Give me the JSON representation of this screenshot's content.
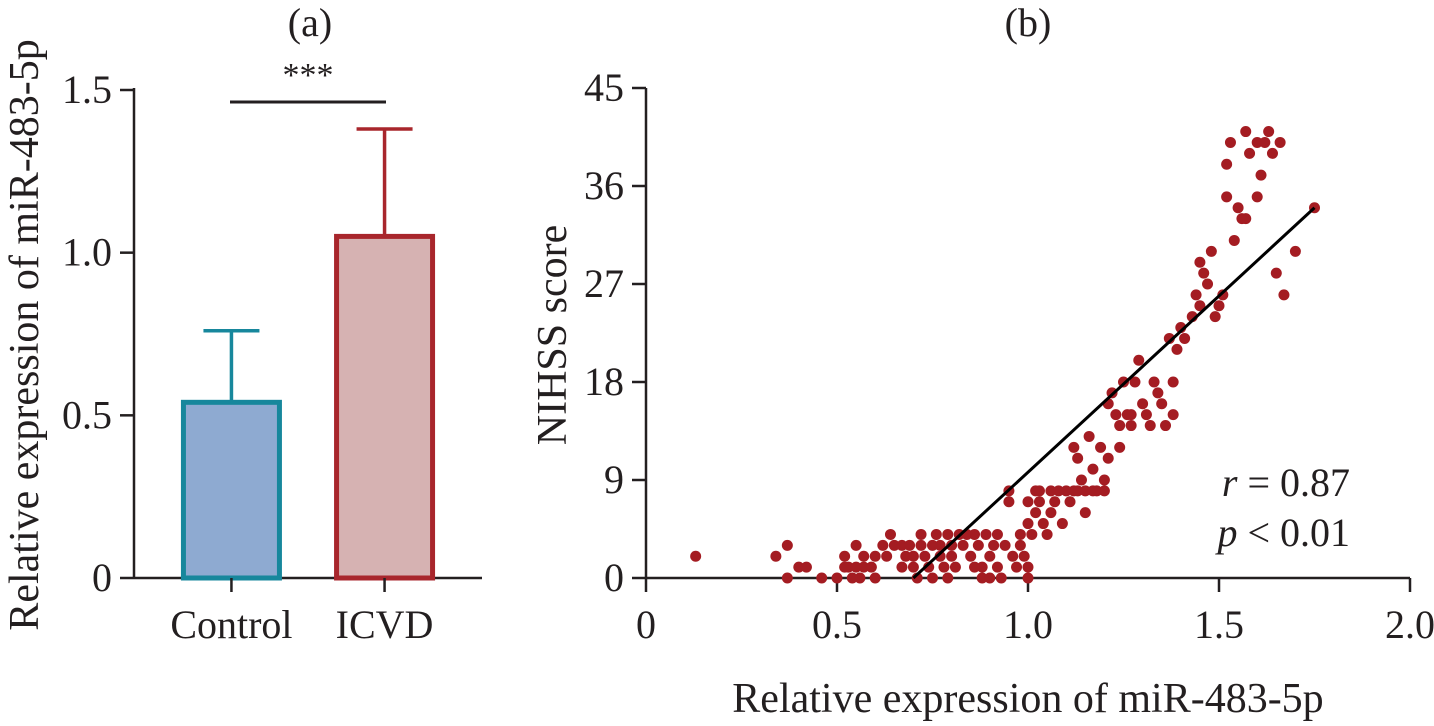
{
  "chart_data": [
    {
      "panel": "(a)",
      "type": "bar",
      "categories": [
        "Control",
        "ICVD"
      ],
      "values": [
        0.54,
        1.05
      ],
      "errors": [
        0.22,
        0.33
      ],
      "ylabel": "Relative expression of miR-483-5p",
      "xlabel": "",
      "ylim": [
        0,
        1.5
      ],
      "yticks": [
        0,
        0.5,
        1.0,
        1.5
      ],
      "ytick_labels": [
        "0",
        "0.5",
        "1.0",
        "1.5"
      ],
      "significance": "***",
      "colors": {
        "control_fill": "#8eaad1",
        "control_edge": "#17879c",
        "icvd_fill": "#d6b2b2",
        "icvd_edge": "#a8262c"
      }
    },
    {
      "panel": "(b)",
      "type": "scatter",
      "xlabel": "Relative expression of miR-483-5p",
      "ylabel": "NIHSS score",
      "xlim": [
        0,
        2.0
      ],
      "ylim": [
        0,
        45
      ],
      "xticks": [
        0,
        0.5,
        1.0,
        1.5,
        2.0
      ],
      "xtick_labels": [
        "0",
        "0.5",
        "1.0",
        "1.5",
        "2.0"
      ],
      "yticks": [
        0,
        9,
        18,
        27,
        36,
        45
      ],
      "ytick_labels": [
        "0",
        "9",
        "18",
        "27",
        "36",
        "45"
      ],
      "point_color": "#a41c22",
      "fit_line": {
        "x": [
          0.7,
          1.75
        ],
        "y": [
          0,
          34
        ]
      },
      "stats": {
        "r_symbol": "r",
        "r_text": " = 0.87",
        "p_symbol": "p",
        "p_text": " < 0.01"
      },
      "points": [
        [
          0.13,
          2
        ],
        [
          0.34,
          2
        ],
        [
          0.37,
          3
        ],
        [
          0.37,
          0
        ],
        [
          0.4,
          1
        ],
        [
          0.42,
          1
        ],
        [
          0.46,
          0
        ],
        [
          0.5,
          0
        ],
        [
          0.52,
          1
        ],
        [
          0.52,
          2
        ],
        [
          0.53,
          1
        ],
        [
          0.54,
          0
        ],
        [
          0.55,
          3
        ],
        [
          0.55,
          1
        ],
        [
          0.56,
          0
        ],
        [
          0.57,
          2
        ],
        [
          0.57,
          1
        ],
        [
          0.59,
          1
        ],
        [
          0.6,
          2
        ],
        [
          0.6,
          0
        ],
        [
          0.62,
          3
        ],
        [
          0.63,
          2
        ],
        [
          0.64,
          4
        ],
        [
          0.65,
          3
        ],
        [
          0.67,
          1
        ],
        [
          0.67,
          3
        ],
        [
          0.68,
          2
        ],
        [
          0.69,
          3
        ],
        [
          0.7,
          2
        ],
        [
          0.7,
          1
        ],
        [
          0.71,
          0
        ],
        [
          0.72,
          4
        ],
        [
          0.72,
          3
        ],
        [
          0.73,
          2
        ],
        [
          0.74,
          1
        ],
        [
          0.75,
          0
        ],
        [
          0.75,
          3
        ],
        [
          0.76,
          4
        ],
        [
          0.77,
          3
        ],
        [
          0.77,
          2
        ],
        [
          0.78,
          1
        ],
        [
          0.79,
          0
        ],
        [
          0.79,
          4
        ],
        [
          0.8,
          3
        ],
        [
          0.8,
          2
        ],
        [
          0.81,
          1
        ],
        [
          0.82,
          4
        ],
        [
          0.83,
          3
        ],
        [
          0.84,
          4
        ],
        [
          0.85,
          2
        ],
        [
          0.86,
          4
        ],
        [
          0.86,
          1
        ],
        [
          0.87,
          3
        ],
        [
          0.88,
          1
        ],
        [
          0.88,
          0
        ],
        [
          0.89,
          4
        ],
        [
          0.9,
          2
        ],
        [
          0.9,
          0
        ],
        [
          0.91,
          3
        ],
        [
          0.92,
          1
        ],
        [
          0.92,
          4
        ],
        [
          0.93,
          0
        ],
        [
          0.94,
          3
        ],
        [
          0.95,
          7
        ],
        [
          0.95,
          8
        ],
        [
          0.96,
          2
        ],
        [
          0.97,
          1
        ],
        [
          0.98,
          4
        ],
        [
          0.98,
          3
        ],
        [
          0.99,
          2
        ],
        [
          1.0,
          5
        ],
        [
          1.0,
          7
        ],
        [
          1.0,
          1
        ],
        [
          1.0,
          0
        ],
        [
          1.01,
          4
        ],
        [
          1.02,
          6
        ],
        [
          1.02,
          8
        ],
        [
          1.03,
          8
        ],
        [
          1.03,
          7
        ],
        [
          1.04,
          5
        ],
        [
          1.05,
          4
        ],
        [
          1.06,
          8
        ],
        [
          1.06,
          6
        ],
        [
          1.07,
          7
        ],
        [
          1.08,
          8
        ],
        [
          1.09,
          5
        ],
        [
          1.1,
          8
        ],
        [
          1.11,
          7
        ],
        [
          1.12,
          8
        ],
        [
          1.12,
          12
        ],
        [
          1.13,
          11
        ],
        [
          1.13,
          8
        ],
        [
          1.14,
          9
        ],
        [
          1.15,
          8
        ],
        [
          1.15,
          6
        ],
        [
          1.16,
          13
        ],
        [
          1.17,
          8
        ],
        [
          1.17,
          10
        ],
        [
          1.18,
          8
        ],
        [
          1.19,
          12
        ],
        [
          1.2,
          9
        ],
        [
          1.2,
          8
        ],
        [
          1.21,
          11
        ],
        [
          1.21,
          16
        ],
        [
          1.22,
          17
        ],
        [
          1.23,
          15
        ],
        [
          1.24,
          12
        ],
        [
          1.24,
          14
        ],
        [
          1.25,
          18
        ],
        [
          1.26,
          15
        ],
        [
          1.27,
          15
        ],
        [
          1.27,
          14
        ],
        [
          1.28,
          18
        ],
        [
          1.29,
          20
        ],
        [
          1.3,
          16
        ],
        [
          1.31,
          15
        ],
        [
          1.32,
          14
        ],
        [
          1.33,
          18
        ],
        [
          1.34,
          17
        ],
        [
          1.35,
          16
        ],
        [
          1.36,
          14
        ],
        [
          1.37,
          22
        ],
        [
          1.38,
          18
        ],
        [
          1.38,
          15
        ],
        [
          1.39,
          21
        ],
        [
          1.4,
          23
        ],
        [
          1.41,
          22
        ],
        [
          1.43,
          24
        ],
        [
          1.44,
          26
        ],
        [
          1.45,
          25
        ],
        [
          1.45,
          29
        ],
        [
          1.46,
          28
        ],
        [
          1.47,
          27
        ],
        [
          1.48,
          30
        ],
        [
          1.49,
          24
        ],
        [
          1.5,
          25
        ],
        [
          1.51,
          26
        ],
        [
          1.52,
          35
        ],
        [
          1.52,
          38
        ],
        [
          1.53,
          40
        ],
        [
          1.54,
          31
        ],
        [
          1.55,
          34
        ],
        [
          1.56,
          33
        ],
        [
          1.57,
          33
        ],
        [
          1.57,
          41
        ],
        [
          1.58,
          39
        ],
        [
          1.6,
          40
        ],
        [
          1.6,
          35
        ],
        [
          1.61,
          37
        ],
        [
          1.62,
          40
        ],
        [
          1.63,
          41
        ],
        [
          1.64,
          39
        ],
        [
          1.65,
          28
        ],
        [
          1.66,
          40
        ],
        [
          1.67,
          26
        ],
        [
          1.7,
          30
        ],
        [
          1.75,
          34
        ]
      ]
    }
  ]
}
